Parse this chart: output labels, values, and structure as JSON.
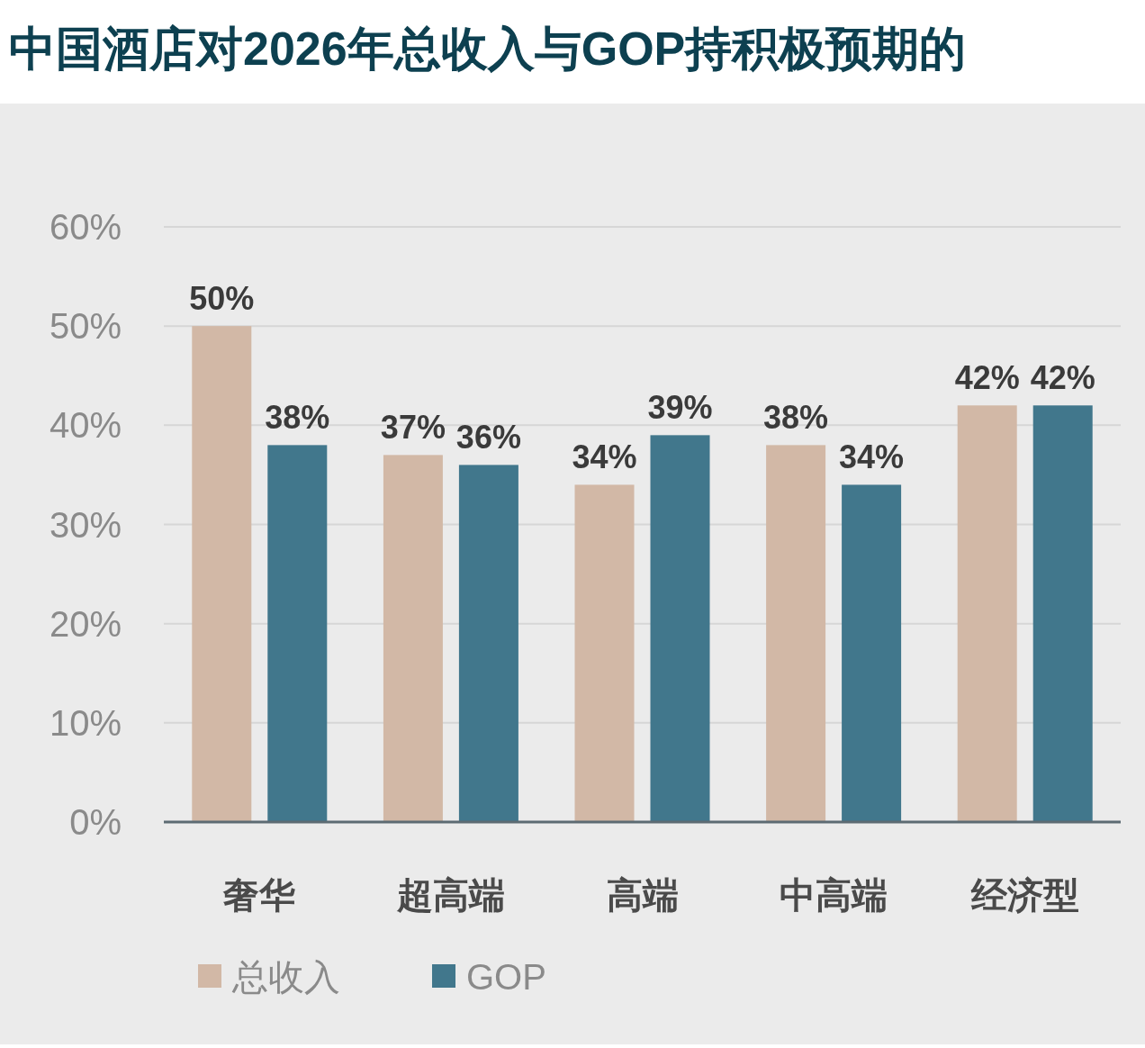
{
  "chart_data": {
    "type": "bar",
    "title": "中国酒店对2026年总收入与GOP持积极预期的",
    "categories": [
      "奢华",
      "超高端",
      "高端",
      "中高端",
      "经济型"
    ],
    "series": [
      {
        "name": "总收入",
        "color": "#d2b8a6",
        "values": [
          50,
          37,
          34,
          38,
          42
        ],
        "value_labels": [
          "50%",
          "37%",
          "34%",
          "38%",
          "42%"
        ]
      },
      {
        "name": "GOP",
        "color": "#41778c",
        "values": [
          38,
          36,
          39,
          34,
          42
        ],
        "value_labels": [
          "38%",
          "36%",
          "39%",
          "34%",
          "42%"
        ]
      }
    ],
    "ylim": [
      0,
      60
    ],
    "yticks": [
      {
        "value": 0,
        "label": "0%"
      },
      {
        "value": 10,
        "label": "10%"
      },
      {
        "value": 20,
        "label": "20%"
      },
      {
        "value": 30,
        "label": "30%"
      },
      {
        "value": 40,
        "label": "40%"
      },
      {
        "value": 50,
        "label": "50%"
      },
      {
        "value": 60,
        "label": "60%"
      }
    ],
    "grid": "y",
    "legend": "bottom left"
  }
}
